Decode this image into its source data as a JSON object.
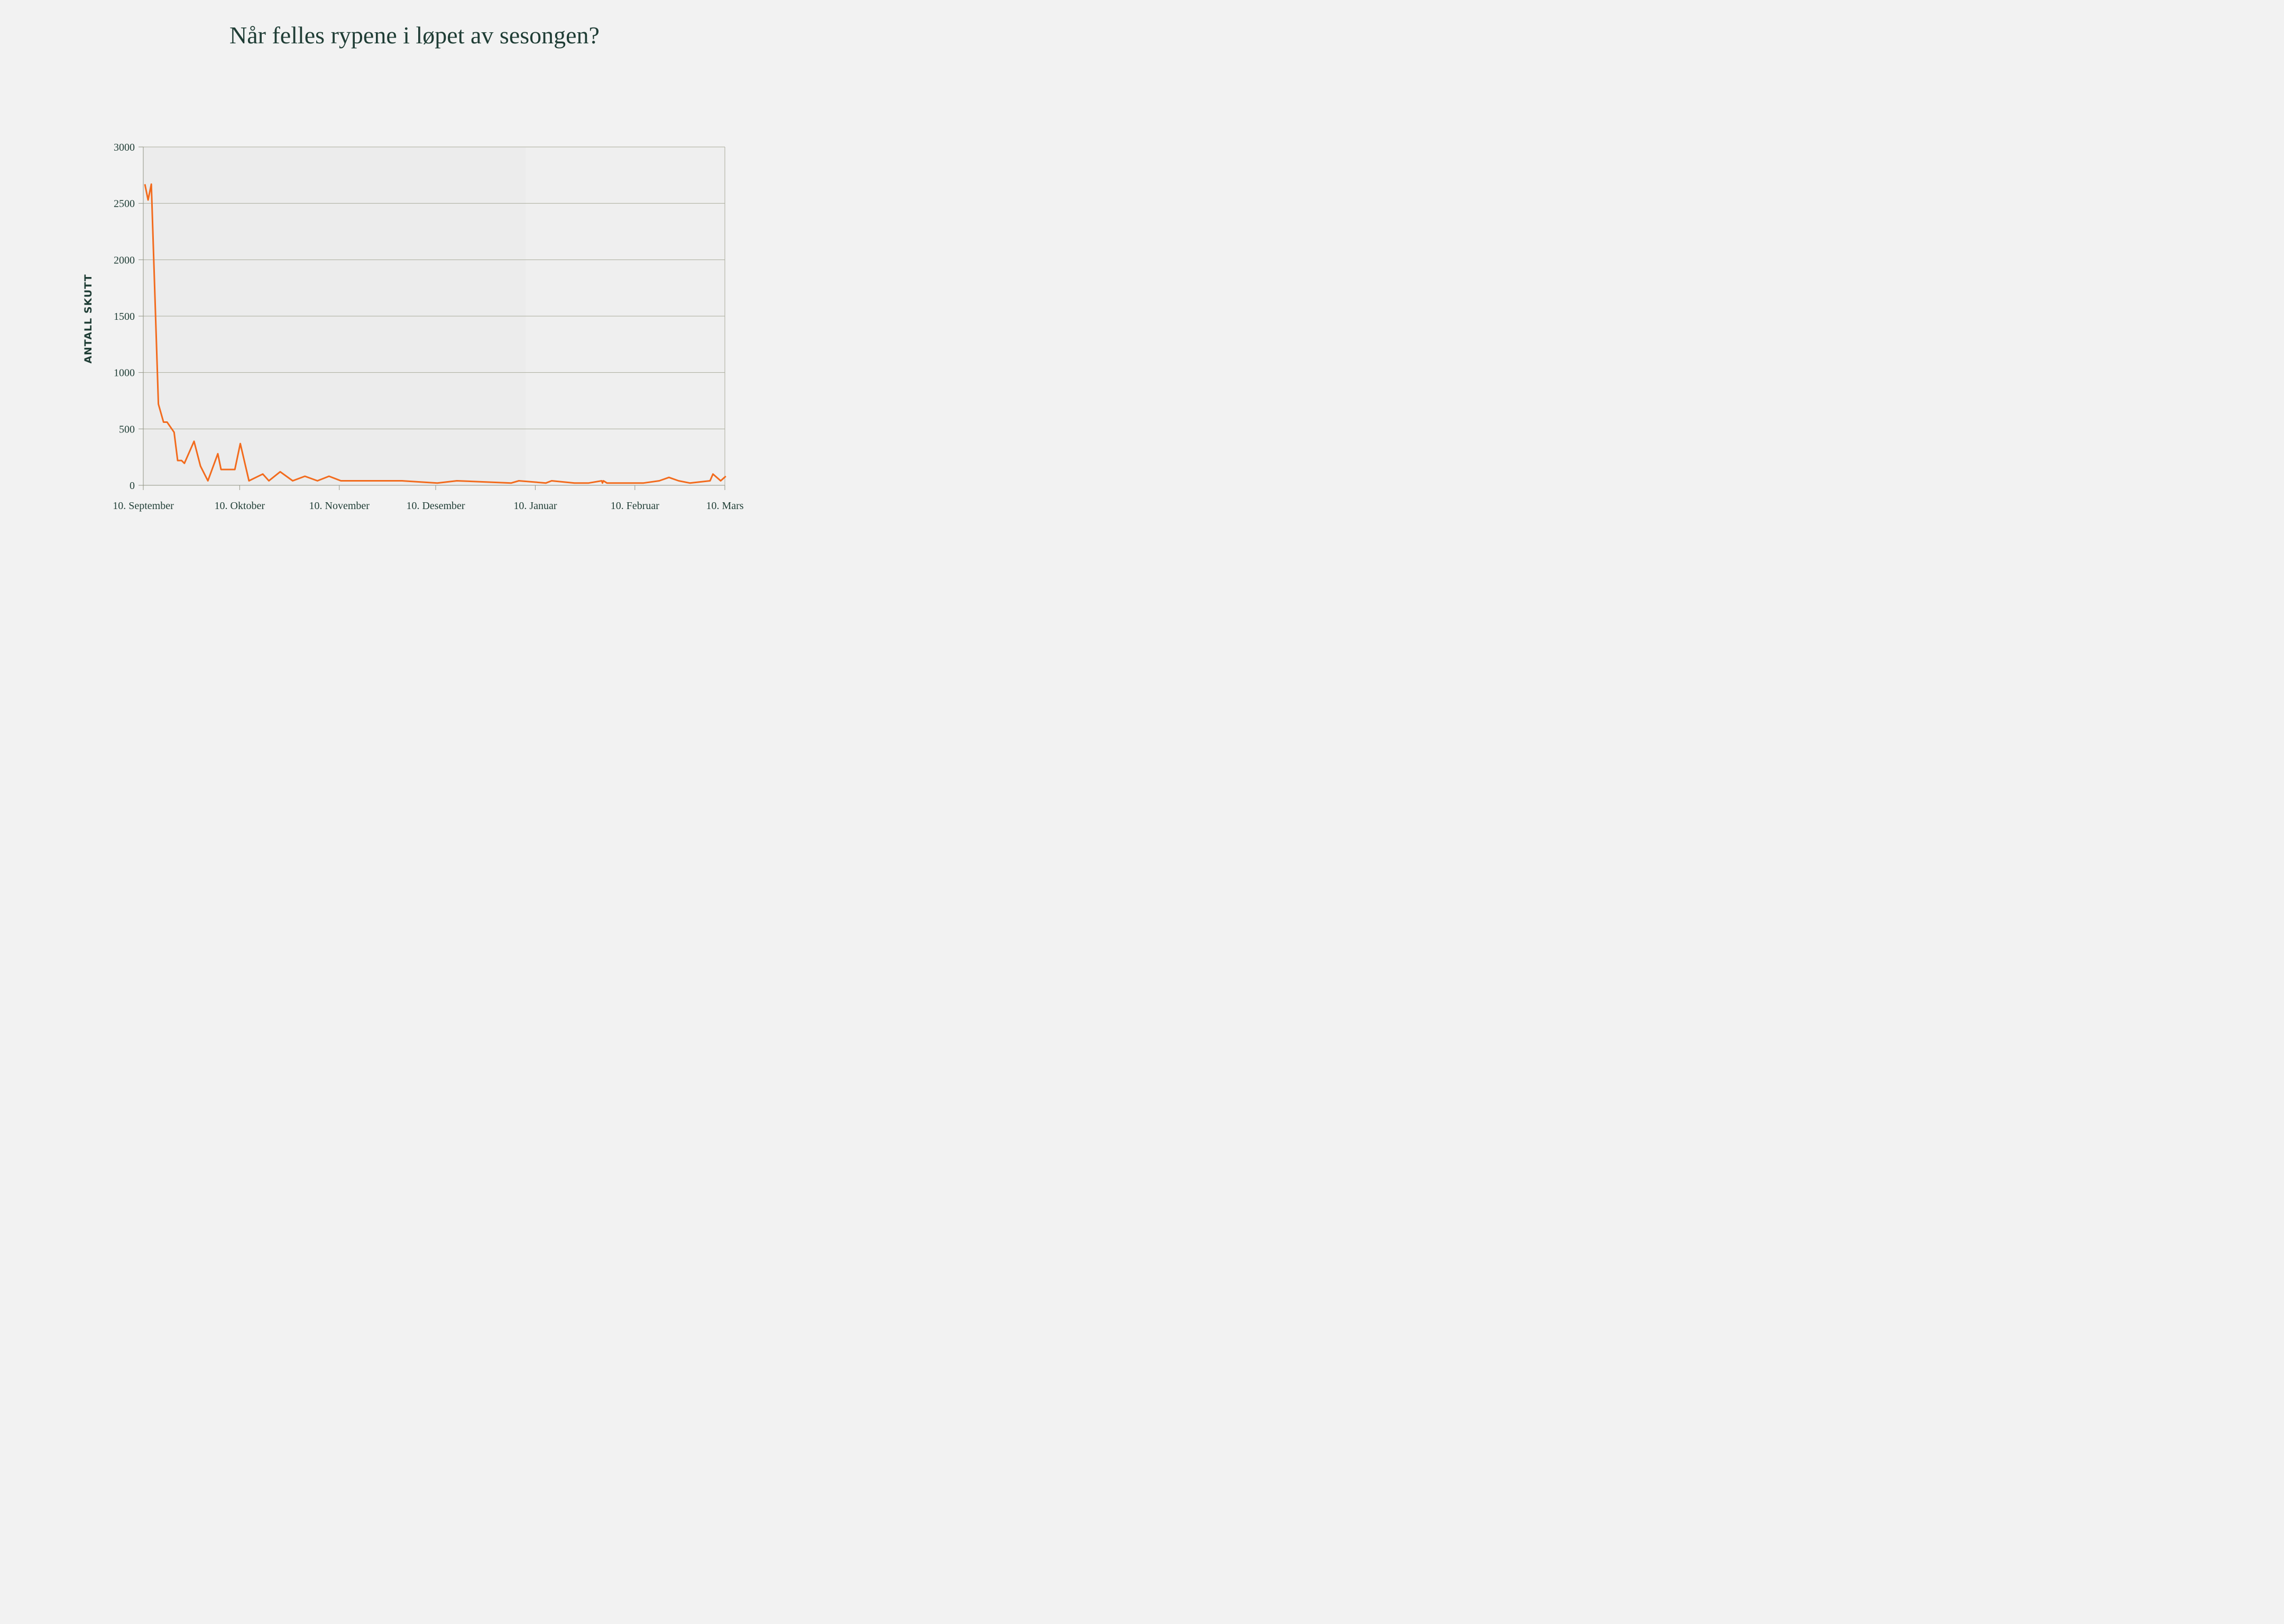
{
  "chart_data": {
    "type": "line",
    "title": "Når felles rypene i løpet av sesongen?",
    "xlabel": "",
    "ylabel": "ANTALL SKUTT",
    "x_tick_labels": [
      "10. September",
      "10. Oktober",
      "10. November",
      "10. Desember",
      "10. Januar",
      "10. Februar",
      "10. Mars"
    ],
    "x_tick_days": [
      0,
      30,
      61,
      91,
      122,
      153,
      181
    ],
    "x_range_days": [
      0,
      181
    ],
    "ylim": [
      0,
      3000
    ],
    "y_ticks": [
      0,
      500,
      1000,
      1500,
      2000,
      2500,
      3000
    ],
    "grid": true,
    "shaded_region_days": [
      0,
      119
    ],
    "series": [
      {
        "color": "#f26b1d",
        "x_days": [
          0.5,
          1.5,
          2.5,
          4.7,
          6.3,
          7.4,
          9.6,
          10.7,
          11.9,
          12.8,
          15.8,
          17.8,
          20.1,
          23.2,
          24.2,
          26.6,
          28.5,
          30.2,
          32.9,
          37.2,
          39.1,
          42.6,
          46.5,
          50.3,
          54.2,
          57.8,
          61.5,
          65.2,
          72.4,
          80.5,
          91.5,
          97.6,
          114.5,
          116.9,
          125.3,
          127.1,
          134.2,
          138.6,
          142.7,
          142.9,
          143.2,
          144.3,
          152.3,
          155.7,
          160.6,
          163.6,
          166.6,
          170.1,
          176.4,
          177.3,
          179.7,
          181.3
        ],
        "values": [
          2670,
          2530,
          2670,
          720,
          560,
          560,
          470,
          220,
          220,
          195,
          390,
          170,
          40,
          280,
          140,
          140,
          140,
          370,
          40,
          100,
          40,
          120,
          40,
          80,
          40,
          80,
          40,
          40,
          40,
          40,
          20,
          40,
          20,
          40,
          20,
          40,
          20,
          20,
          40,
          20,
          40,
          20,
          20,
          20,
          40,
          70,
          40,
          20,
          40,
          100,
          40,
          80
        ]
      }
    ]
  }
}
